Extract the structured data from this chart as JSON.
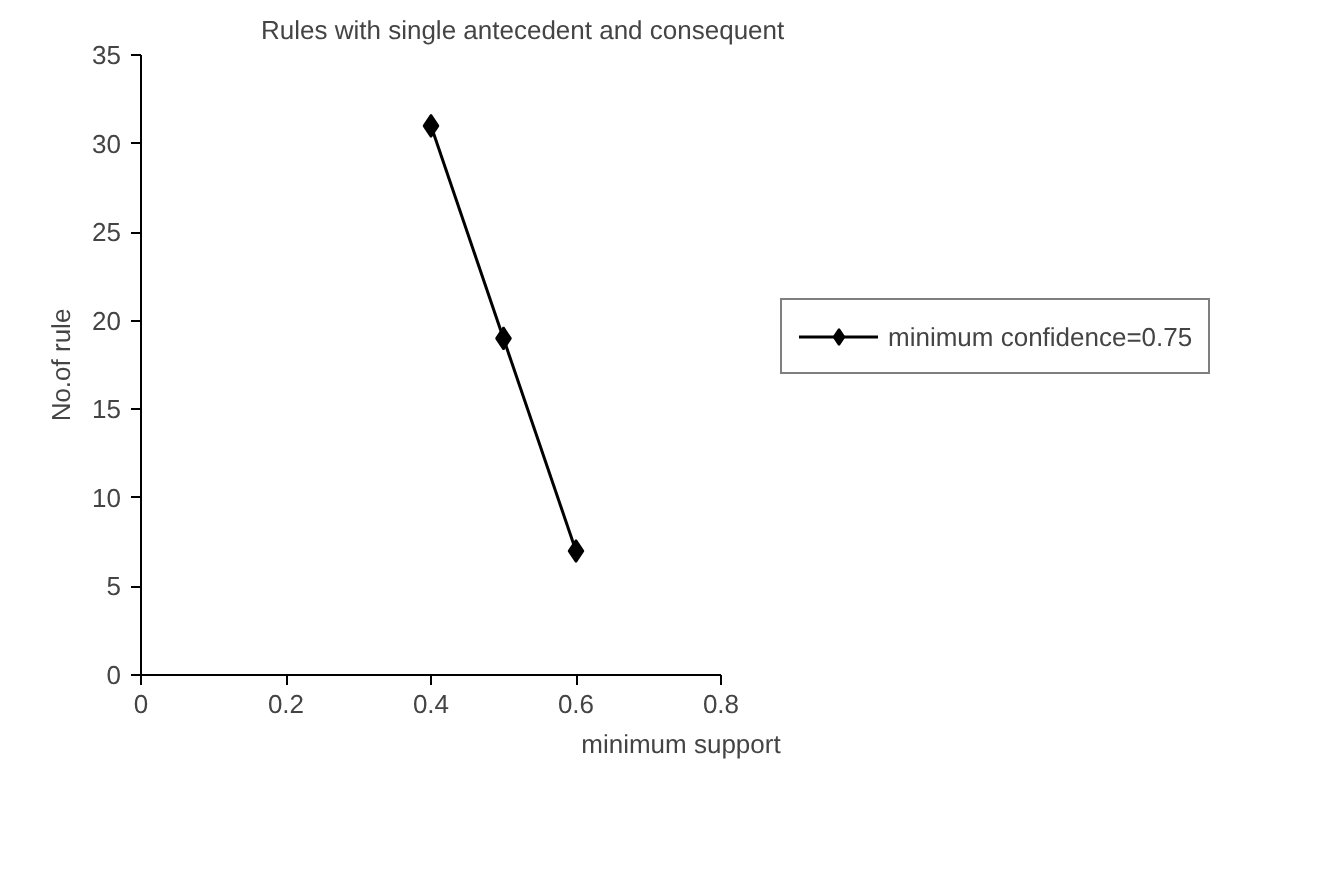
{
  "chart_data": {
    "type": "line",
    "title": "Rules with single antecedent and consequent",
    "xlabel": "minimum support",
    "ylabel": "No.of rule",
    "x": [
      0.4,
      0.5,
      0.6
    ],
    "series": [
      {
        "name": "minimum confidence=0.75",
        "color": "#000000",
        "values": [
          31,
          19,
          7
        ]
      }
    ],
    "xlim": [
      0,
      0.8
    ],
    "xticks": [
      0,
      0.2,
      0.4,
      0.6,
      0.8
    ],
    "ylim": [
      0,
      35
    ],
    "yticks": [
      0,
      5,
      10,
      15,
      20,
      25,
      30,
      35
    ],
    "grid": false,
    "legend": "right",
    "marker": "diamond",
    "line_style": "solid"
  }
}
